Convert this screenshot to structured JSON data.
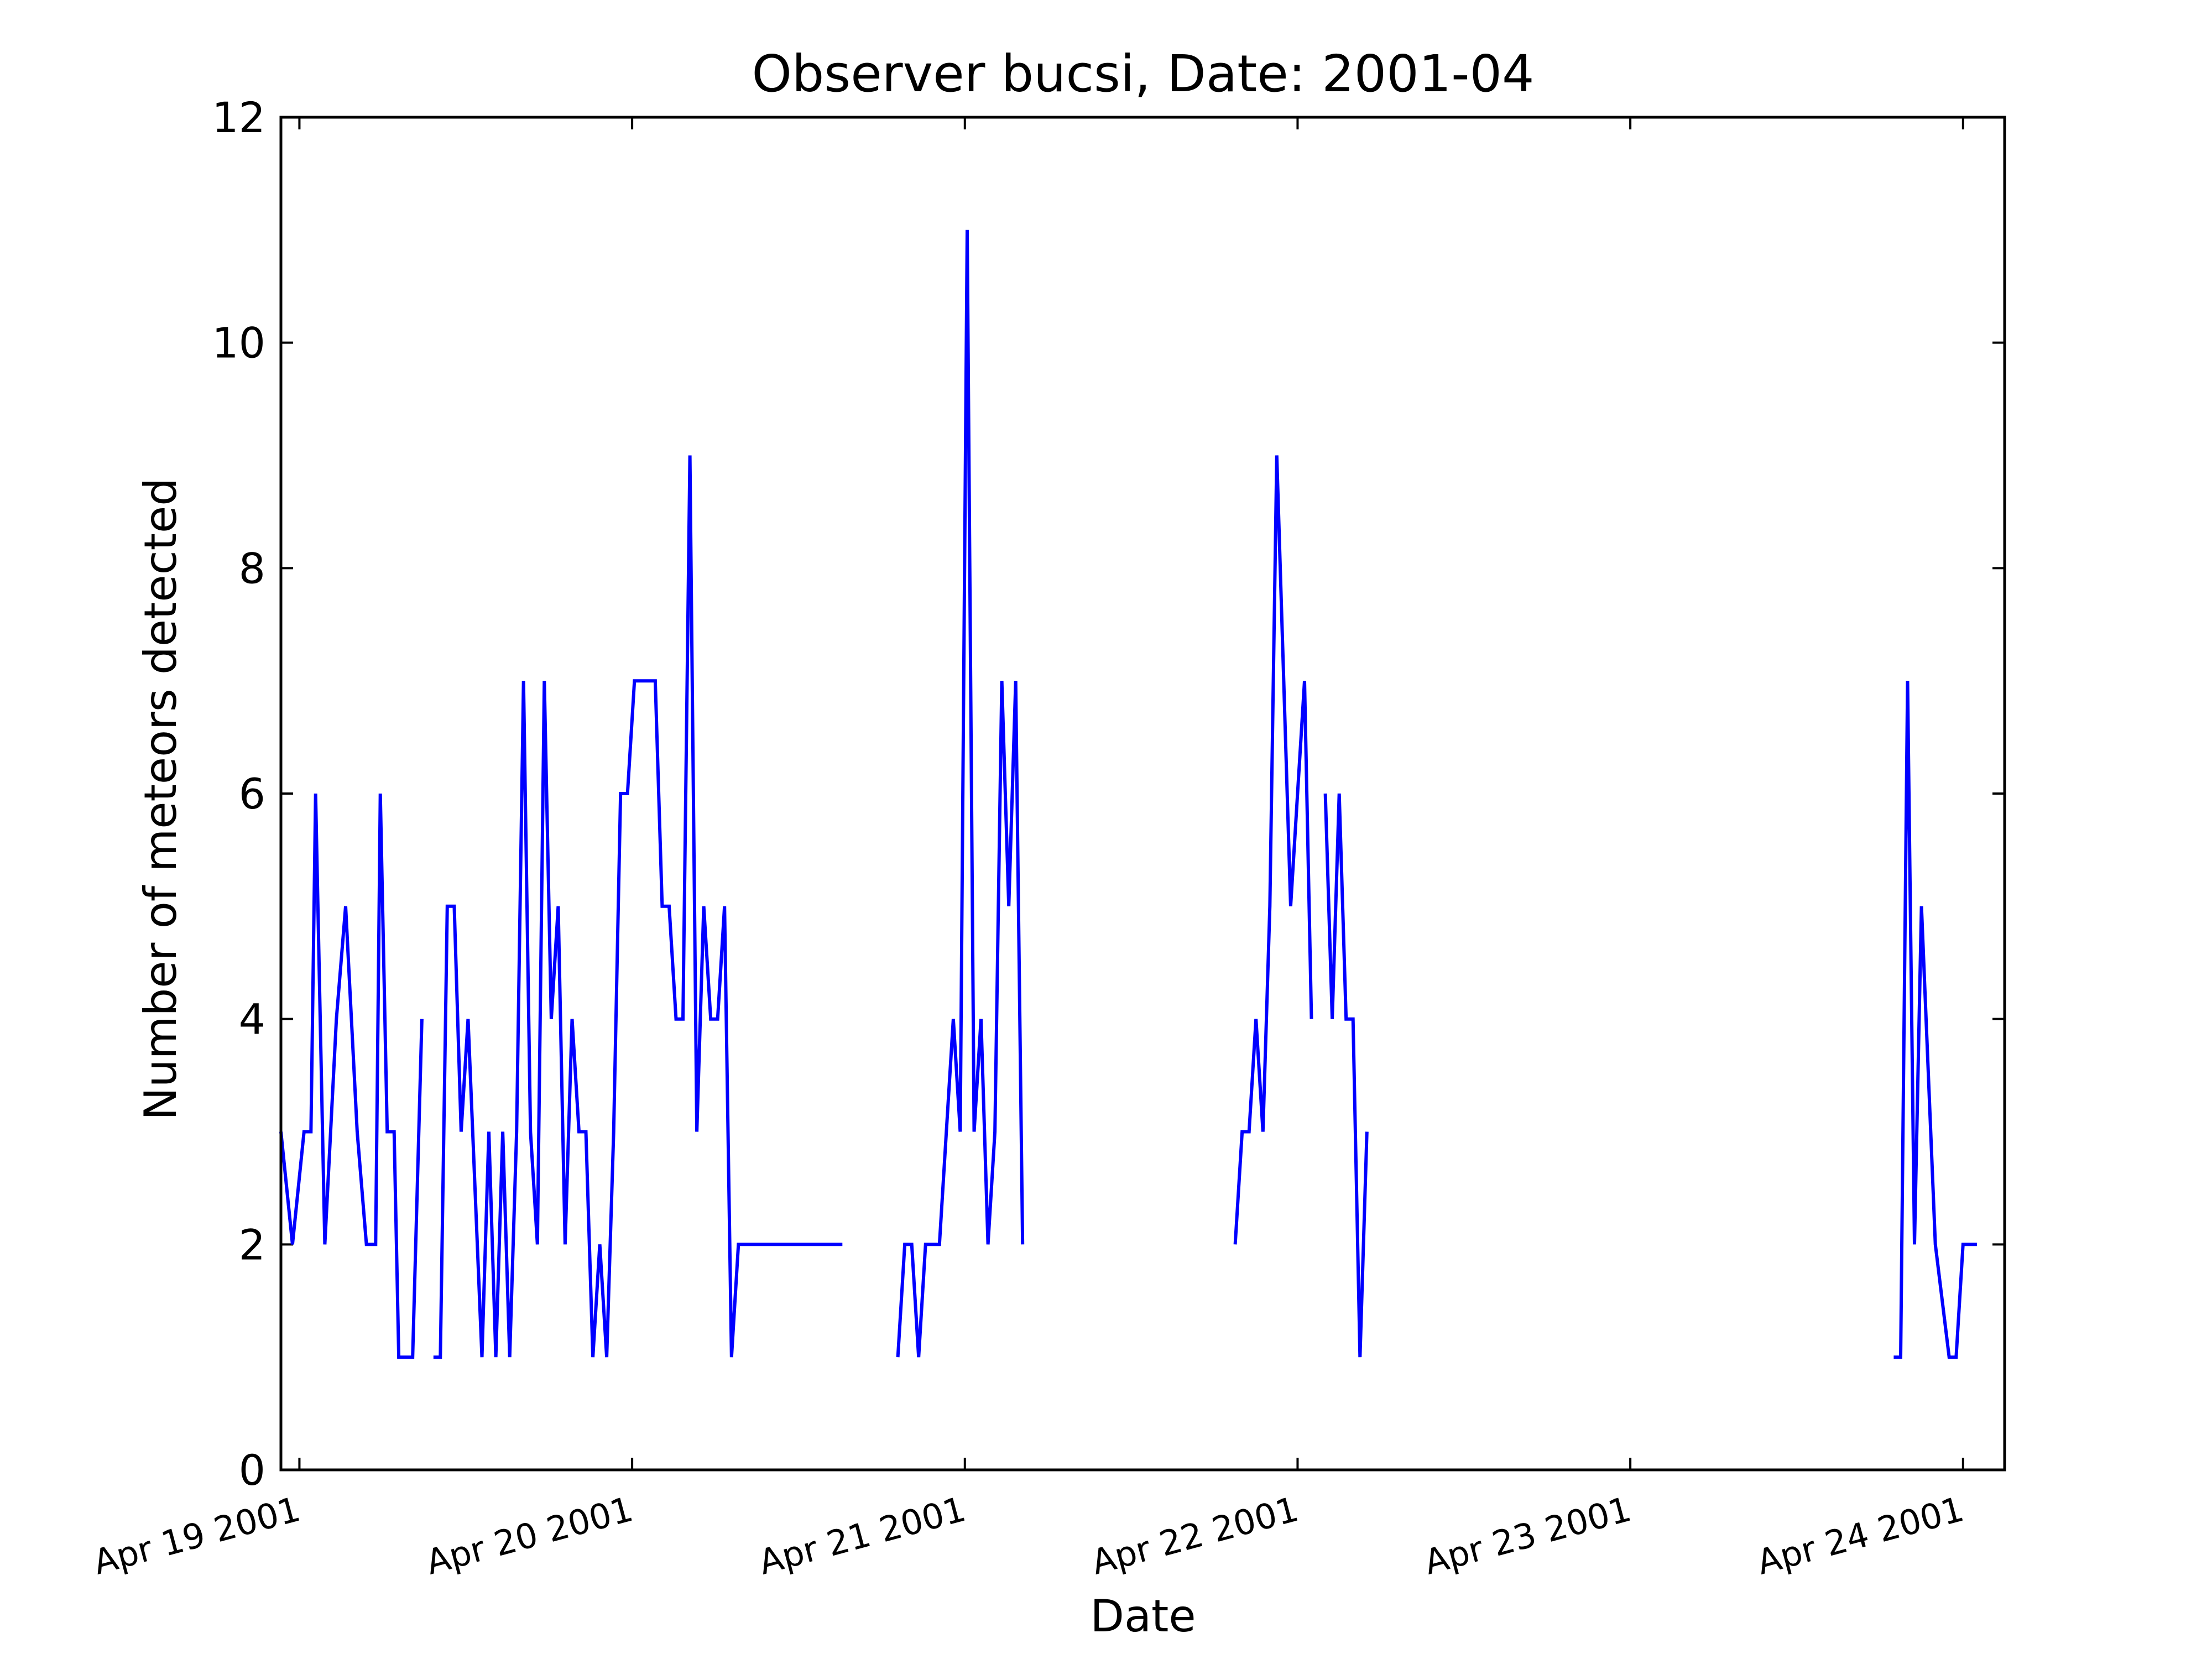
{
  "chart_data": {
    "type": "line",
    "title": "Observer bucsi, Date: 2001-04",
    "xlabel": "Date",
    "ylabel": "Number of meteors detected",
    "ylim": [
      0,
      12
    ],
    "xlim": [
      "2001-04-18 22:40",
      "2001-04-24 03:00"
    ],
    "yticks": [
      0,
      2,
      4,
      6,
      8,
      10,
      12
    ],
    "xticks": [
      {
        "label": "Apr 19 2001",
        "date": "2001-04-19 00:00"
      },
      {
        "label": "Apr 20 2001",
        "date": "2001-04-20 00:00"
      },
      {
        "label": "Apr 21 2001",
        "date": "2001-04-21 00:00"
      },
      {
        "label": "Apr 22 2001",
        "date": "2001-04-22 00:00"
      },
      {
        "label": "Apr 23 2001",
        "date": "2001-04-23 00:00"
      },
      {
        "label": "Apr 24 2001",
        "date": "2001-04-24 00:00"
      }
    ],
    "grid": false,
    "color": "#0000ff",
    "series": [
      {
        "segments": [
          {
            "x": [
              "2001-04-18 22:40",
              "2001-04-18 23:30",
              "2001-04-19 00:20",
              "2001-04-19 00:50",
              "2001-04-19 01:10",
              "2001-04-19 01:50",
              "2001-04-19 02:40",
              "2001-04-19 03:20",
              "2001-04-19 04:10",
              "2001-04-19 04:50",
              "2001-04-19 05:30",
              "2001-04-19 05:50",
              "2001-04-19 06:20",
              "2001-04-19 06:50",
              "2001-04-19 07:10",
              "2001-04-19 07:50",
              "2001-04-19 08:10",
              "2001-04-19 08:50"
            ],
            "y": [
              3,
              2,
              3,
              3,
              6,
              2,
              4,
              5,
              3,
              2,
              2,
              6,
              3,
              3,
              1,
              1,
              1,
              4
            ]
          },
          {
            "x": [
              "2001-04-19 09:40",
              "2001-04-19 10:10",
              "2001-04-19 10:40",
              "2001-04-19 11:10",
              "2001-04-19 11:40",
              "2001-04-19 12:10",
              "2001-04-19 13:10",
              "2001-04-19 13:40",
              "2001-04-19 14:10",
              "2001-04-19 14:40",
              "2001-04-19 15:10",
              "2001-04-19 15:40",
              "2001-04-19 16:10",
              "2001-04-19 16:40",
              "2001-04-19 17:10",
              "2001-04-19 17:40",
              "2001-04-19 18:10",
              "2001-04-19 18:40",
              "2001-04-19 19:10",
              "2001-04-19 19:40",
              "2001-04-19 20:10",
              "2001-04-19 20:40",
              "2001-04-19 21:10",
              "2001-04-19 21:40",
              "2001-04-19 22:10",
              "2001-04-19 22:40",
              "2001-04-19 23:10",
              "2001-04-19 23:40",
              "2001-04-20 00:10",
              "2001-04-20 00:40",
              "2001-04-20 01:10",
              "2001-04-20 01:40",
              "2001-04-20 02:10",
              "2001-04-20 02:40",
              "2001-04-20 03:10",
              "2001-04-20 03:40",
              "2001-04-20 04:10",
              "2001-04-20 04:40",
              "2001-04-20 05:10",
              "2001-04-20 05:40",
              "2001-04-20 06:10",
              "2001-04-20 06:40",
              "2001-04-20 07:10",
              "2001-04-20 07:40",
              "2001-04-20 08:10",
              "2001-04-20 08:40",
              "2001-04-20 09:10",
              "2001-04-20 09:40",
              "2001-04-20 10:10",
              "2001-04-20 10:40",
              "2001-04-20 11:10",
              "2001-04-20 11:40",
              "2001-04-20 12:10",
              "2001-04-20 12:40",
              "2001-04-20 13:10",
              "2001-04-20 13:40",
              "2001-04-20 14:10",
              "2001-04-20 14:40",
              "2001-04-20 15:10"
            ],
            "y": [
              1,
              1,
              5,
              5,
              3,
              4,
              1,
              3,
              1,
              3,
              1,
              3,
              7,
              3,
              2,
              7,
              4,
              5,
              2,
              4,
              3,
              3,
              1,
              2,
              1,
              3,
              6,
              6,
              7,
              7,
              7,
              7,
              5,
              5,
              4,
              4,
              9,
              3,
              5,
              4,
              4,
              5,
              1,
              2,
              2,
              2,
              2,
              2,
              2,
              2,
              2,
              2,
              2,
              2,
              2,
              2,
              2,
              2,
              2
            ]
          },
          {
            "x": [
              "2001-04-20 19:10",
              "2001-04-20 19:40",
              "2001-04-20 20:10",
              "2001-04-20 20:40",
              "2001-04-20 21:10",
              "2001-04-20 22:10",
              "2001-04-20 22:40",
              "2001-04-20 23:10",
              "2001-04-20 23:40",
              "2001-04-21 00:10",
              "2001-04-21 00:40",
              "2001-04-21 01:10",
              "2001-04-21 01:40",
              "2001-04-21 02:10",
              "2001-04-21 02:40",
              "2001-04-21 03:10",
              "2001-04-21 03:40",
              "2001-04-21 04:10"
            ],
            "y": [
              1,
              2,
              2,
              1,
              2,
              2,
              3,
              4,
              3,
              11,
              3,
              4,
              2,
              3,
              7,
              5,
              7,
              2
            ]
          },
          {
            "x": [
              "2001-04-21 19:30",
              "2001-04-21 20:00",
              "2001-04-21 20:30",
              "2001-04-21 21:00",
              "2001-04-21 21:30",
              "2001-04-21 22:00",
              "2001-04-21 22:30",
              "2001-04-21 23:00",
              "2001-04-21 23:30",
              "2001-04-22 00:00",
              "2001-04-22 00:30",
              "2001-04-22 01:00"
            ],
            "y": [
              2,
              3,
              3,
              4,
              3,
              5,
              9,
              7,
              5,
              6,
              7,
              4
            ]
          },
          {
            "x": [
              "2001-04-22 02:00",
              "2001-04-22 02:30",
              "2001-04-22 03:00",
              "2001-04-22 03:30",
              "2001-04-22 04:00",
              "2001-04-22 04:30",
              "2001-04-22 05:00"
            ],
            "y": [
              6,
              4,
              6,
              4,
              4,
              1,
              3
            ]
          },
          {
            "x": [
              "2001-04-23 19:00",
              "2001-04-23 19:30",
              "2001-04-23 20:00",
              "2001-04-23 20:30",
              "2001-04-23 21:00",
              "2001-04-23 22:00",
              "2001-04-23 23:00",
              "2001-04-23 23:30",
              "2001-04-24 00:00",
              "2001-04-24 00:30",
              "2001-04-24 01:00"
            ],
            "y": [
              1,
              1,
              7,
              2,
              5,
              2,
              1,
              1,
              2,
              2,
              2
            ]
          }
        ]
      }
    ]
  }
}
